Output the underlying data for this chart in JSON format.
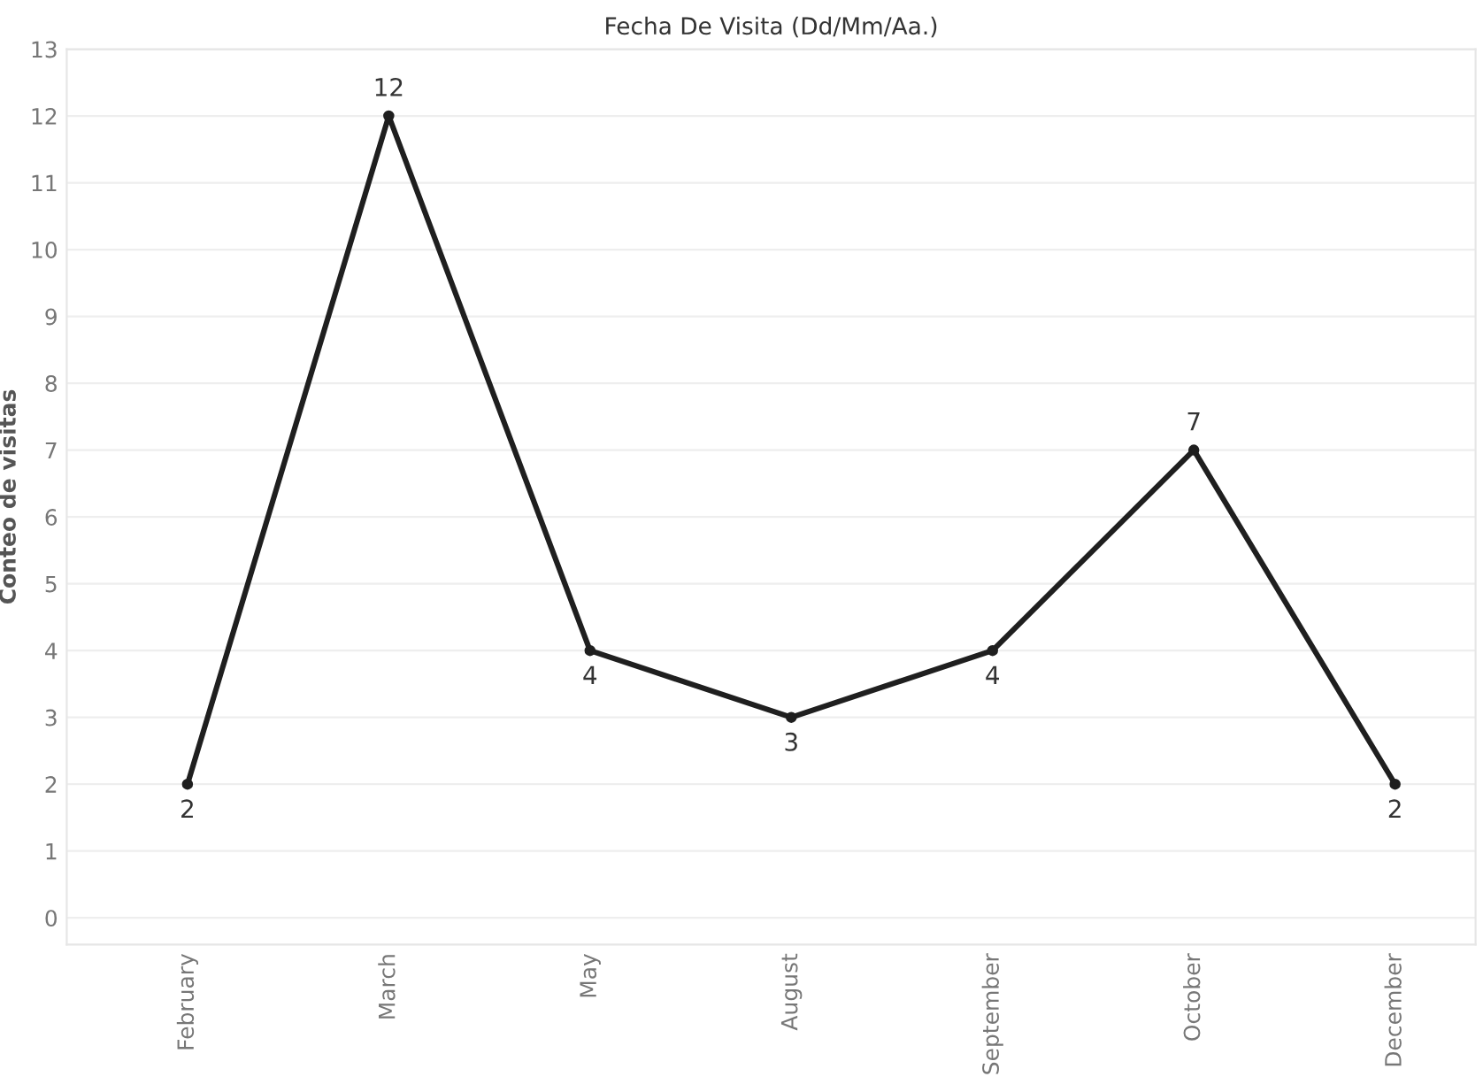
{
  "chart_data": {
    "type": "line",
    "title": "Fecha De Visita (Dd/Mm/Aa.)",
    "ylabel": "Conteo de visitas",
    "categories": [
      "February",
      "March",
      "May",
      "August",
      "September",
      "October",
      "December"
    ],
    "series": [
      {
        "color": "#1f1f1f",
        "values": [
          2,
          12,
          4,
          3,
          4,
          7,
          2
        ]
      }
    ],
    "ylim": [
      -0.4,
      13
    ],
    "yticks": [
      0,
      1,
      2,
      3,
      4,
      5,
      6,
      7,
      8,
      9,
      10,
      11,
      12,
      13
    ],
    "grid": "y",
    "marker": "circle",
    "line_style": "solid",
    "data_labels": true
  }
}
